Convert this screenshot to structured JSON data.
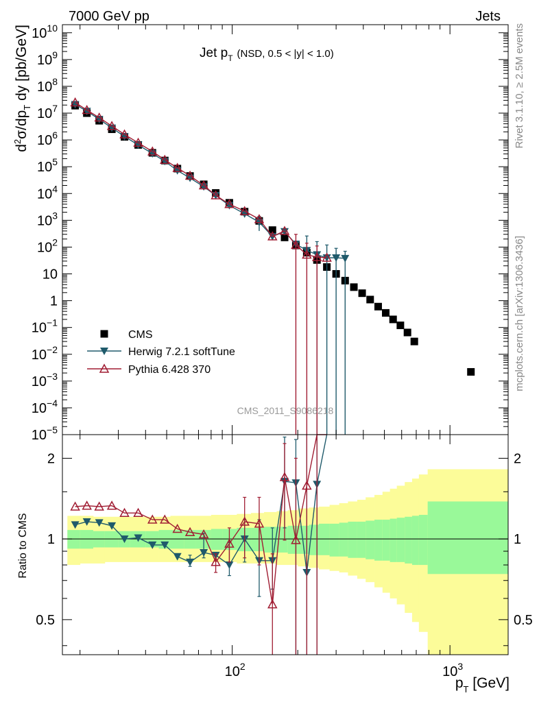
{
  "header": {
    "left": "7000 GeV pp",
    "right": "Jets"
  },
  "side": {
    "rivet": "Rivet 3.1.10, ≥ 2.5M events",
    "mcplots": "mcplots.cern.ch [arXiv:1306.3436]"
  },
  "watermark": "CMS_2011_S9086218",
  "colors": {
    "cms": "#000000",
    "herwig": "#1f5a6b",
    "pythia": "#a01c32",
    "band_inner": "#99f999",
    "band_outer": "#fcfc99"
  },
  "chart_data": [
    {
      "type": "scatter",
      "panel": "main",
      "title_main": "Jet p",
      "title_sub": "T",
      "title_cond": "(NSD, 0.5 < |y| < 1.0)",
      "ylabel": "d²σ/dp_T dy [pb/GeV]",
      "xscale": "log",
      "yscale": "log",
      "xlim": [
        16.6,
        1850
      ],
      "ylim": [
        1e-05,
        20000000000.0
      ],
      "yticks": [
        {
          "v": 10000000000.0,
          "label": "10",
          "exp": "10"
        },
        {
          "v": 1000000000.0,
          "label": "10",
          "exp": "9"
        },
        {
          "v": 100000000.0,
          "label": "10",
          "exp": "8"
        },
        {
          "v": 10000000.0,
          "label": "10",
          "exp": "7"
        },
        {
          "v": 1000000.0,
          "label": "10",
          "exp": "6"
        },
        {
          "v": 100000.0,
          "label": "10",
          "exp": "5"
        },
        {
          "v": 10000.0,
          "label": "10",
          "exp": "4"
        },
        {
          "v": 1000.0,
          "label": "10",
          "exp": "3"
        },
        {
          "v": 100.0,
          "label": "10",
          "exp": "2"
        },
        {
          "v": 10,
          "label": "10",
          "exp": ""
        },
        {
          "v": 1,
          "label": "1",
          "exp": ""
        },
        {
          "v": 0.1,
          "label": "10",
          "exp": "−1"
        },
        {
          "v": 0.01,
          "label": "10",
          "exp": "−2"
        },
        {
          "v": 0.001,
          "label": "10",
          "exp": "−3"
        },
        {
          "v": 0.0001,
          "label": "10",
          "exp": "−4"
        },
        {
          "v": 1e-05,
          "label": "10",
          "exp": "−5"
        }
      ],
      "legend": {
        "position": "bottom-left",
        "entries": [
          "CMS",
          "Herwig 7.2.1 softTune",
          "Pythia 6.428 370"
        ]
      },
      "series": [
        {
          "name": "CMS",
          "marker": "square",
          "x": [
            19,
            21.5,
            24.5,
            28,
            32,
            37,
            43,
            49,
            56,
            64,
            74,
            84,
            97,
            114,
            133,
            153,
            174,
            196,
            220,
            245,
            272,
            300,
            330,
            362,
            395,
            430,
            468,
            507,
            548,
            592,
            638,
            686,
            1248
          ],
          "y": [
            19000000.0,
            10000000.0,
            5200000.0,
            2500000.0,
            1300000.0,
            650000.0,
            330000.0,
            170000.0,
            85000.0,
            45000.0,
            22000.0,
            10500.0,
            4500.0,
            2100.0,
            950,
            430,
            230,
            115,
            62,
            33,
            18,
            10,
            5.6,
            3.2,
            1.9,
            1.1,
            0.6,
            0.35,
            0.2,
            0.12,
            0.065,
            0.03,
            0.0022
          ]
        },
        {
          "name": "Herwig 7.2.1 softTune",
          "marker": "triangle-down",
          "x": [
            19,
            21.5,
            24.5,
            28,
            32,
            37,
            43,
            49,
            56,
            64,
            74,
            84,
            97,
            114,
            133,
            153,
            174,
            196,
            220,
            245,
            272,
            300,
            330
          ],
          "y": [
            21000000.0,
            11800000.0,
            5900000.0,
            2800000.0,
            1350000.0,
            650000.0,
            310000.0,
            160000.0,
            72000.0,
            38000.0,
            18000.0,
            8500.0,
            3600.0,
            1750.0,
            850,
            250,
            380,
            130,
            75,
            52,
            40,
            40,
            38
          ],
          "err_lo": [
            null,
            null,
            null,
            null,
            null,
            null,
            null,
            null,
            null,
            null,
            null,
            null,
            null,
            null,
            400,
            null,
            null,
            null,
            90,
            0,
            0,
            0,
            0
          ],
          "err_hi": [
            null,
            null,
            null,
            null,
            null,
            null,
            null,
            null,
            null,
            null,
            null,
            null,
            null,
            null,
            1400,
            null,
            null,
            null,
            260,
            160,
            120,
            90,
            70
          ]
        },
        {
          "name": "Pythia 6.428 370",
          "marker": "triangle-up-open",
          "x": [
            19,
            21.5,
            24.5,
            28,
            32,
            37,
            43,
            49,
            56,
            64,
            74,
            84,
            97,
            114,
            133,
            153,
            174,
            196,
            220,
            245,
            272
          ],
          "y": [
            25000000.0,
            13000000.0,
            6800000.0,
            3300000.0,
            1600000.0,
            780000.0,
            370000.0,
            180000.0,
            90000.0,
            46000.0,
            20000.0,
            8500.0,
            4000.0,
            2200.0,
            1100.0,
            250,
            400,
            120,
            52,
            42,
            40
          ],
          "err_lo": [
            null,
            null,
            null,
            null,
            null,
            null,
            null,
            null,
            null,
            null,
            null,
            null,
            null,
            null,
            null,
            null,
            null,
            0,
            0,
            0,
            null
          ],
          "err_hi": [
            null,
            null,
            null,
            null,
            null,
            null,
            null,
            null,
            null,
            null,
            null,
            null,
            null,
            null,
            null,
            null,
            null,
            300,
            140,
            110,
            null
          ]
        }
      ]
    },
    {
      "type": "scatter",
      "panel": "ratio",
      "ylabel": "Ratio to CMS",
      "xlabel": "p_T [GeV]",
      "xscale": "log",
      "yscale": "log",
      "xlim": [
        16.6,
        1850
      ],
      "ylim": [
        0.37,
        2.45
      ],
      "yticks": [
        {
          "v": 0.5,
          "label": "0.5"
        },
        {
          "v": 1,
          "label": "1"
        },
        {
          "v": 2,
          "label": "2"
        }
      ],
      "xticks": [
        {
          "v": 100,
          "label": "10",
          "exp": "2"
        },
        {
          "v": 1000,
          "label": "10",
          "exp": "3"
        }
      ],
      "band_edges": [
        17.5,
        20,
        23,
        26,
        30,
        34,
        40,
        46,
        52,
        60,
        68,
        80,
        90,
        105,
        122,
        140,
        160,
        180,
        200,
        225,
        250,
        280,
        310,
        340,
        375,
        410,
        450,
        490,
        530,
        570,
        620,
        670,
        720,
        790,
        1850
      ],
      "band_inner_lo": [
        0.92,
        0.92,
        0.93,
        0.93,
        0.93,
        0.93,
        0.93,
        0.92,
        0.92,
        0.92,
        0.92,
        0.91,
        0.91,
        0.9,
        0.9,
        0.89,
        0.89,
        0.88,
        0.88,
        0.87,
        0.87,
        0.86,
        0.86,
        0.85,
        0.85,
        0.84,
        0.83,
        0.83,
        0.82,
        0.82,
        0.81,
        0.8,
        0.8,
        0.74
      ],
      "band_inner_hi": [
        1.08,
        1.08,
        1.07,
        1.07,
        1.07,
        1.07,
        1.07,
        1.08,
        1.08,
        1.08,
        1.08,
        1.09,
        1.09,
        1.1,
        1.1,
        1.11,
        1.11,
        1.12,
        1.12,
        1.13,
        1.14,
        1.14,
        1.15,
        1.16,
        1.16,
        1.17,
        1.18,
        1.18,
        1.19,
        1.2,
        1.21,
        1.22,
        1.23,
        1.38
      ],
      "band_outer_lo": [
        0.8,
        0.81,
        0.81,
        0.82,
        0.82,
        0.82,
        0.82,
        0.82,
        0.82,
        0.82,
        0.82,
        0.82,
        0.82,
        0.81,
        0.81,
        0.81,
        0.8,
        0.8,
        0.79,
        0.78,
        0.77,
        0.76,
        0.75,
        0.73,
        0.71,
        0.69,
        0.66,
        0.63,
        0.6,
        0.57,
        0.53,
        0.49,
        0.45,
        0.37
      ],
      "band_outer_hi": [
        1.22,
        1.22,
        1.21,
        1.21,
        1.21,
        1.21,
        1.21,
        1.21,
        1.22,
        1.22,
        1.22,
        1.23,
        1.23,
        1.24,
        1.25,
        1.26,
        1.27,
        1.28,
        1.3,
        1.31,
        1.32,
        1.34,
        1.36,
        1.38,
        1.4,
        1.43,
        1.46,
        1.5,
        1.54,
        1.58,
        1.63,
        1.68,
        1.74,
        1.82
      ],
      "series": [
        {
          "name": "Herwig 7.2.1 softTune",
          "x": [
            19,
            21.5,
            24.5,
            28,
            32,
            37,
            43,
            49,
            56,
            64,
            74,
            84,
            97,
            114,
            133,
            153,
            174,
            196,
            220,
            245,
            272
          ],
          "y": [
            1.13,
            1.16,
            1.15,
            1.12,
            1.0,
            1.01,
            0.95,
            0.95,
            0.86,
            0.82,
            0.89,
            0.87,
            0.8,
            1.0,
            0.83,
            0.83,
            1.64,
            1.62,
            0.75,
            1.6,
            2.5
          ],
          "err_lo": [
            null,
            null,
            null,
            null,
            null,
            null,
            null,
            null,
            null,
            0.79,
            0.85,
            null,
            0.73,
            0.82,
            0.61,
            0.65,
            1.1,
            0.37,
            0.37,
            0.37,
            null
          ],
          "err_hi": [
            null,
            null,
            null,
            null,
            null,
            null,
            null,
            null,
            null,
            0.87,
            1.05,
            null,
            0.97,
            1.18,
            1.18,
            1.1,
            2.4,
            2.35,
            2.45,
            2.45,
            null
          ]
        },
        {
          "name": "Pythia 6.428 370",
          "x": [
            19,
            21.5,
            24.5,
            28,
            32,
            37,
            43,
            49,
            56,
            64,
            74,
            84,
            97,
            114,
            133,
            153,
            174,
            196,
            220,
            245,
            272
          ],
          "y": [
            1.32,
            1.33,
            1.32,
            1.33,
            1.25,
            1.25,
            1.18,
            1.18,
            1.09,
            1.06,
            1.04,
            0.82,
            0.96,
            1.16,
            1.14,
            0.57,
            1.7,
            0.99,
            1.58,
            2.5,
            2.5
          ],
          "err_lo": [
            null,
            null,
            null,
            null,
            null,
            null,
            null,
            null,
            null,
            null,
            null,
            0.75,
            0.82,
            0.85,
            0.8,
            0.37,
            0.99,
            0.37,
            0.37,
            0.37,
            null
          ],
          "err_hi": [
            null,
            null,
            null,
            null,
            null,
            null,
            null,
            null,
            null,
            null,
            null,
            0.88,
            1.1,
            1.43,
            1.43,
            0.88,
            2.27,
            2.0,
            2.45,
            2.45,
            null
          ]
        }
      ]
    }
  ]
}
